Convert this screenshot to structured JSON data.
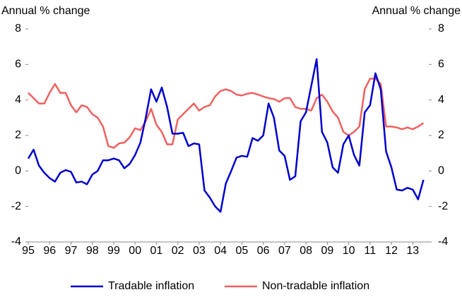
{
  "chart_data": {
    "type": "line",
    "y_label": "Annual % change",
    "y2_label": "Annual % change",
    "x": [
      1995,
      1995.25,
      1995.5,
      1995.75,
      1996,
      1996.25,
      1996.5,
      1996.75,
      1997,
      1997.25,
      1997.5,
      1997.75,
      1998,
      1998.25,
      1998.5,
      1998.75,
      1999,
      1999.25,
      1999.5,
      1999.75,
      2000,
      2000.25,
      2000.5,
      2000.75,
      2001,
      2001.25,
      2001.5,
      2001.75,
      2002,
      2002.25,
      2002.5,
      2002.75,
      2003,
      2003.25,
      2003.5,
      2003.75,
      2004,
      2004.25,
      2004.5,
      2004.75,
      2005,
      2005.25,
      2005.5,
      2005.75,
      2006,
      2006.25,
      2006.5,
      2006.75,
      2007,
      2007.25,
      2007.5,
      2007.75,
      2008,
      2008.25,
      2008.5,
      2008.75,
      2009,
      2009.25,
      2009.5,
      2009.75,
      2010,
      2010.25,
      2010.5,
      2010.75,
      2011,
      2011.25,
      2011.5,
      2011.75,
      2012,
      2012.25,
      2012.5,
      2012.75,
      2013,
      2013.25,
      2013.5
    ],
    "series": [
      {
        "name": "Tradable inflation",
        "color": "#0000cc",
        "values": [
          0.7,
          1.2,
          0.3,
          -0.1,
          -0.4,
          -0.6,
          -0.1,
          0.05,
          -0.05,
          -0.65,
          -0.6,
          -0.75,
          -0.2,
          0,
          0.6,
          0.6,
          0.7,
          0.6,
          0.15,
          0.4,
          0.9,
          1.6,
          3.0,
          4.6,
          3.9,
          4.7,
          3.6,
          2.1,
          2.1,
          2.15,
          1.4,
          1.55,
          1.5,
          -1.1,
          -1.5,
          -2.0,
          -2.3,
          -0.7,
          0,
          0.75,
          0.85,
          0.8,
          1.85,
          1.7,
          2.0,
          3.8,
          3.0,
          1.15,
          0.85,
          -0.5,
          -0.3,
          2.8,
          3.3,
          4.8,
          6.3,
          2.2,
          1.6,
          0.2,
          -0.1,
          1.5,
          2.0,
          0.9,
          0.3,
          3.3,
          3.7,
          5.5,
          4.6,
          1.1,
          0.2,
          -1.05,
          -1.1,
          -0.95,
          -1.05,
          -1.6,
          -0.5
        ]
      },
      {
        "name": "Non-tradable inflation",
        "color": "#f06060",
        "values": [
          4.4,
          4.1,
          3.8,
          3.8,
          4.4,
          4.9,
          4.4,
          4.4,
          3.7,
          3.3,
          3.7,
          3.6,
          3.2,
          3.0,
          2.5,
          1.4,
          1.3,
          1.55,
          1.6,
          1.9,
          2.4,
          2.3,
          2.8,
          3.5,
          2.6,
          2.2,
          1.5,
          1.5,
          2.9,
          3.2,
          3.5,
          3.8,
          3.4,
          3.6,
          3.7,
          4.2,
          4.5,
          4.6,
          4.5,
          4.3,
          4.25,
          4.35,
          4.4,
          4.3,
          4.2,
          4.1,
          4.05,
          3.9,
          4.1,
          4.1,
          3.6,
          3.5,
          3.5,
          3.4,
          4.1,
          4.3,
          3.9,
          3.35,
          3.0,
          2.2,
          2.0,
          2.2,
          2.5,
          4.6,
          5.2,
          5.2,
          4.9,
          2.5,
          2.5,
          2.45,
          2.35,
          2.45,
          2.35,
          2.5,
          2.7
        ]
      }
    ],
    "xlim": [
      1995,
      2013.75
    ],
    "xticks": [
      {
        "value": 1995,
        "label": "95"
      },
      {
        "value": 1996,
        "label": "96"
      },
      {
        "value": 1997,
        "label": "97"
      },
      {
        "value": 1998,
        "label": "98"
      },
      {
        "value": 1999,
        "label": "99"
      },
      {
        "value": 2000,
        "label": "00"
      },
      {
        "value": 2001,
        "label": "01"
      },
      {
        "value": 2002,
        "label": "02"
      },
      {
        "value": 2003,
        "label": "03"
      },
      {
        "value": 2004,
        "label": "04"
      },
      {
        "value": 2005,
        "label": "05"
      },
      {
        "value": 2006,
        "label": "06"
      },
      {
        "value": 2007,
        "label": "07"
      },
      {
        "value": 2008,
        "label": "08"
      },
      {
        "value": 2009,
        "label": "09"
      },
      {
        "value": 2010,
        "label": "10"
      },
      {
        "value": 2011,
        "label": "11"
      },
      {
        "value": 2012,
        "label": "12"
      },
      {
        "value": 2013,
        "label": "13"
      }
    ],
    "ylim": [
      -4,
      8
    ],
    "yticks": [
      -4,
      -2,
      0,
      2,
      4,
      6,
      8
    ],
    "y2lim": [
      -4,
      8
    ],
    "y2ticks": [
      -4,
      -2,
      0,
      2,
      4,
      6,
      8
    ],
    "legend": "bottom"
  }
}
